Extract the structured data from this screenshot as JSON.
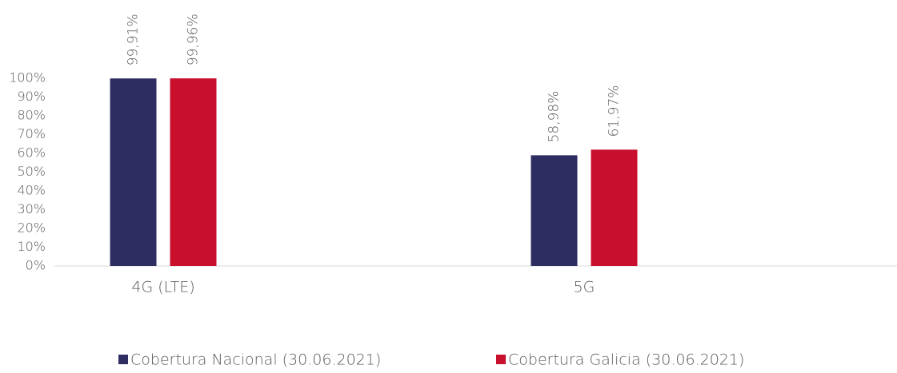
{
  "chart_data": {
    "type": "bar",
    "categories": [
      "4G (LTE)",
      "5G"
    ],
    "series": [
      {
        "name": "Cobertura Nacional (30.06.2021)",
        "color": "#2d2d62",
        "values": [
          99.91,
          58.98
        ],
        "value_labels": [
          "99,91%",
          "58,98%"
        ]
      },
      {
        "name": "Cobertura Galicia (30.06.2021)",
        "color": "#c8102e",
        "values": [
          99.96,
          61.97
        ],
        "value_labels": [
          "99,96%",
          "61,97%"
        ]
      }
    ],
    "ylim": [
      0,
      100
    ],
    "yticks": [
      {
        "value": 0,
        "label": "0%"
      },
      {
        "value": 10,
        "label": "10%"
      },
      {
        "value": 20,
        "label": "20%"
      },
      {
        "value": 30,
        "label": "30%"
      },
      {
        "value": 40,
        "label": "40%"
      },
      {
        "value": 50,
        "label": "50%"
      },
      {
        "value": 60,
        "label": "60%"
      },
      {
        "value": 70,
        "label": "70%"
      },
      {
        "value": 80,
        "label": "80%"
      },
      {
        "value": 90,
        "label": "90%"
      },
      {
        "value": 100,
        "label": "100%"
      }
    ],
    "grid": false,
    "legend": "bottom"
  }
}
